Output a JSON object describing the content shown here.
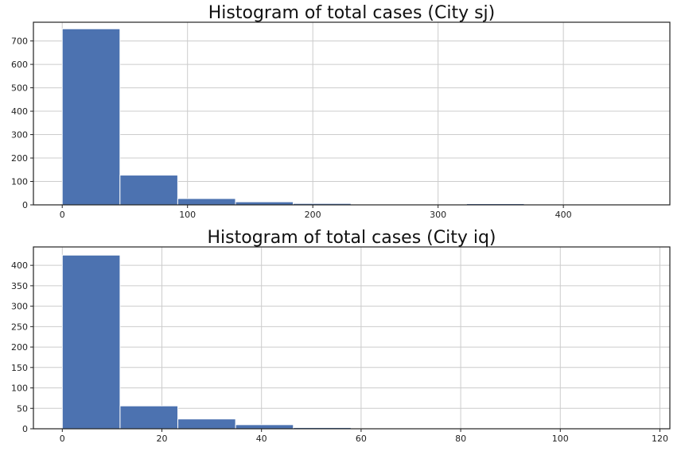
{
  "chart_data": [
    {
      "type": "bar",
      "title": "Histogram of total cases (City sj)",
      "xlabel": "",
      "ylabel": "",
      "grid": true,
      "xlim": [
        -23,
        485
      ],
      "ylim": [
        0,
        780
      ],
      "xticks": [
        0,
        100,
        200,
        300,
        400
      ],
      "yticks": [
        0,
        100,
        200,
        300,
        400,
        500,
        600,
        700
      ],
      "bin_edges": [
        0,
        46.1,
        92.2,
        138.3,
        184.4,
        230.5,
        276.6,
        322.7,
        368.8,
        414.9,
        461
      ],
      "values": [
        752,
        127,
        27,
        13,
        6,
        0,
        0,
        5,
        1,
        1
      ]
    },
    {
      "type": "bar",
      "title": "Histogram of total cases (City iq)",
      "xlabel": "",
      "ylabel": "",
      "grid": true,
      "xlim": [
        -5.8,
        122
      ],
      "ylim": [
        0,
        445
      ],
      "xticks": [
        0,
        20,
        40,
        60,
        80,
        100,
        120
      ],
      "yticks": [
        0,
        50,
        100,
        150,
        200,
        250,
        300,
        350,
        400
      ],
      "bin_edges": [
        0,
        11.6,
        23.2,
        34.8,
        46.4,
        58,
        69.6,
        81.2,
        92.8,
        104.4,
        116
      ],
      "values": [
        425,
        56,
        24,
        10,
        3,
        1,
        0,
        0,
        0,
        1
      ]
    }
  ]
}
